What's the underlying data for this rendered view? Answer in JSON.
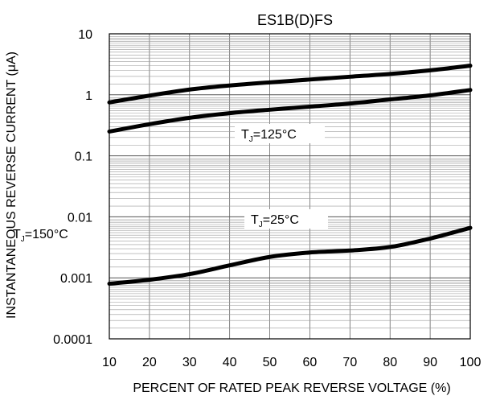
{
  "chart_data": {
    "type": "line",
    "title": "ES1B(D)FS",
    "xlabel": "PERCENT OF RATED PEAK REVERSE VOLTAGE (%)",
    "ylabel": "INSTANTANEOUS REVERSE CURRENT (μA)",
    "xlim": [
      10,
      100
    ],
    "ylim": [
      0.0001,
      10
    ],
    "yscale": "log",
    "grid": true,
    "x_ticks": [
      "10",
      "20",
      "30",
      "40",
      "50",
      "60",
      "70",
      "80",
      "90",
      "100"
    ],
    "y_ticks": [
      "10",
      "1",
      "0.1",
      "0.01",
      "0.001",
      "0.0001"
    ],
    "x": [
      10,
      20,
      30,
      40,
      50,
      60,
      70,
      80,
      90,
      100
    ],
    "series": [
      {
        "label": "T",
        "sub": "J",
        "eq": "=150°C",
        "values": [
          0.75,
          0.97,
          1.22,
          1.42,
          1.6,
          1.78,
          1.98,
          2.2,
          2.52,
          3.0
        ]
      },
      {
        "label": "T",
        "sub": "J",
        "eq": "=125°C",
        "values": [
          0.25,
          0.33,
          0.42,
          0.5,
          0.57,
          0.64,
          0.72,
          0.84,
          0.98,
          1.2
        ]
      },
      {
        "label": "T",
        "sub": "J",
        "eq": "=25°C",
        "values": [
          0.0008,
          0.00093,
          0.00115,
          0.0016,
          0.0022,
          0.0026,
          0.0028,
          0.0032,
          0.0044,
          0.0066
        ]
      }
    ]
  }
}
